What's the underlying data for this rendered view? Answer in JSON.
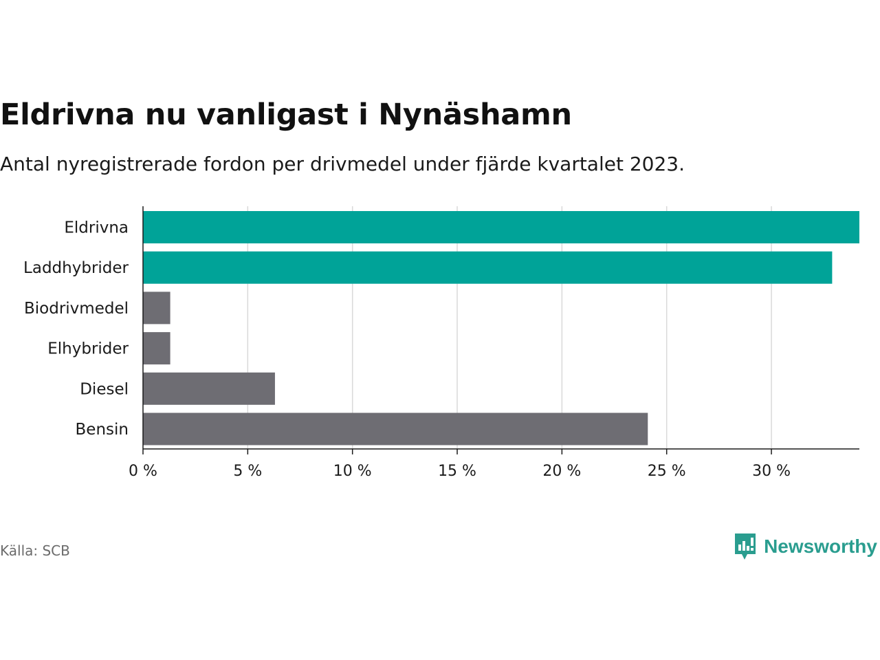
{
  "title": "Eldrivna nu vanligast i Nynäshamn",
  "subtitle": "Antal nyregistrerade fordon per drivmedel under fjärde kvartalet 2023.",
  "source": "Källa: SCB",
  "brand": "Newsworthy",
  "colors": {
    "highlight": "#00a398",
    "default": "#6e6d73",
    "grid": "#d9d9d9",
    "brand": "#2a9d8f"
  },
  "chart_data": {
    "type": "bar",
    "orientation": "horizontal",
    "categories": [
      "Eldrivna",
      "Laddhybrider",
      "Biodrivmedel",
      "Elhybrider",
      "Diesel",
      "Bensin"
    ],
    "values": [
      34.2,
      32.9,
      1.3,
      1.3,
      6.3,
      24.1
    ],
    "highlight": [
      true,
      true,
      false,
      false,
      false,
      false
    ],
    "xlim": [
      0,
      34.2
    ],
    "xticks": [
      0,
      5,
      10,
      15,
      20,
      25,
      30
    ],
    "xtick_labels": [
      "0 %",
      "5 %",
      "10 %",
      "15 %",
      "20 %",
      "25 %",
      "30 %"
    ],
    "grid": true
  }
}
